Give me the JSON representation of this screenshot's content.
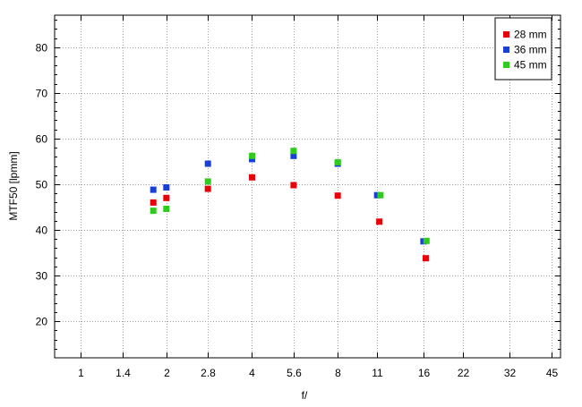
{
  "chart_data": {
    "type": "scatter",
    "title": "",
    "xlabel": "f/",
    "ylabel": "MTF50 [lpmm]",
    "x_scale": "log2",
    "xticks": [
      1,
      1.4,
      2,
      2.8,
      4,
      5.6,
      8,
      11,
      16,
      22,
      32,
      45
    ],
    "xtick_labels": [
      "1",
      "1.4",
      "2",
      "2.8",
      "4",
      "5.6",
      "8",
      "11",
      "16",
      "22",
      "32",
      "45"
    ],
    "xlim": [
      0.81,
      48.5
    ],
    "ylim": [
      12,
      87
    ],
    "yticks": [
      20,
      30,
      40,
      50,
      60,
      70,
      80
    ],
    "grid": true,
    "legend_position": "top-right",
    "series": [
      {
        "name": "28 mm",
        "color": "#e8000b",
        "points": [
          [
            1.8,
            46.0
          ],
          [
            2.0,
            47.0
          ],
          [
            2.8,
            49.0
          ],
          [
            4.0,
            51.5
          ],
          [
            5.6,
            49.8
          ],
          [
            8.0,
            47.5
          ],
          [
            11.2,
            41.8
          ],
          [
            16.3,
            33.8
          ]
        ]
      },
      {
        "name": "36 mm",
        "color": "#1a3fd6",
        "points": [
          [
            1.8,
            48.8
          ],
          [
            2.0,
            49.3
          ],
          [
            2.8,
            54.5
          ],
          [
            4.0,
            55.5
          ],
          [
            5.6,
            56.2
          ],
          [
            8.0,
            54.5
          ],
          [
            11.0,
            47.6
          ],
          [
            16.0,
            37.5
          ]
        ]
      },
      {
        "name": "45 mm",
        "color": "#2ecc1c",
        "points": [
          [
            1.8,
            44.2
          ],
          [
            2.0,
            44.6
          ],
          [
            2.8,
            50.6
          ],
          [
            4.0,
            56.2
          ],
          [
            5.6,
            57.3
          ],
          [
            8.0,
            54.8
          ],
          [
            11.3,
            47.6
          ],
          [
            16.4,
            37.6
          ]
        ]
      }
    ]
  }
}
